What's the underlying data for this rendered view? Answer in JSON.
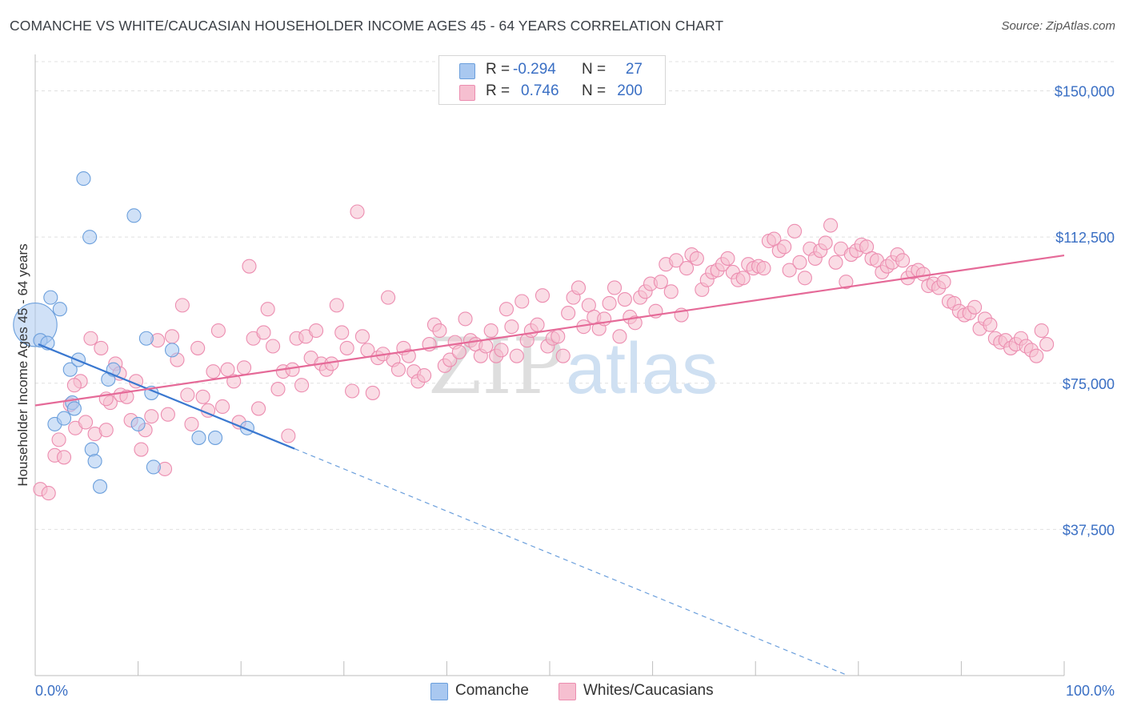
{
  "title": "COMANCHE VS WHITE/CAUCASIAN HOUSEHOLDER INCOME AGES 45 - 64 YEARS CORRELATION CHART",
  "source": "Source: ZipAtlas.com",
  "watermark": {
    "zip": "ZIP",
    "atlas": "atlas"
  },
  "legend": {
    "rows": [
      {
        "r_label": "R =",
        "r_value": "-0.294",
        "n_label": "N =",
        "n_value": "27",
        "color": "#a9c8f0",
        "stroke": "#6b9fdc"
      },
      {
        "r_label": "R =",
        "r_value": "0.746",
        "n_label": "N =",
        "n_value": "200",
        "color": "#f6bfd0",
        "stroke": "#ec8db0"
      }
    ]
  },
  "bottom_legend": [
    {
      "label": "Comanche",
      "color": "#a9c8f0",
      "stroke": "#6b9fdc"
    },
    {
      "label": "Whites/Caucasians",
      "color": "#f6bfd0",
      "stroke": "#ec8db0"
    }
  ],
  "chart_data": {
    "type": "scatter",
    "title": "COMANCHE VS WHITE/CAUCASIAN HOUSEHOLDER INCOME AGES 45 - 64 YEARS CORRELATION CHART",
    "xlabel": "",
    "ylabel": "Householder Income Ages 45 - 64 years",
    "xlim": [
      0,
      100
    ],
    "ylim": [
      0,
      157500
    ],
    "x_tick_labels": [
      "0.0%",
      "100.0%"
    ],
    "y_ticks": [
      37500,
      75000,
      112500,
      150000
    ],
    "y_tick_labels": [
      "$37,500",
      "$75,000",
      "$112,500",
      "$150,000"
    ],
    "grid": true,
    "legend_position": "top-center",
    "series": [
      {
        "name": "Comanche",
        "color": "#a9c8f0",
        "stroke": "#6b9fdc",
        "trend": {
          "x0": 0.3,
          "y0": 85000,
          "x1": 25.2,
          "y1": 58200,
          "dash_to_x": 79.0,
          "dash_to_y": 0
        },
        "points": [
          [
            0.0,
            90000,
            3.2
          ],
          [
            0.5,
            86000,
            1
          ],
          [
            1.2,
            85300,
            1
          ],
          [
            1.5,
            97000,
            1
          ],
          [
            2.4,
            94000,
            1
          ],
          [
            1.9,
            64500,
            1
          ],
          [
            2.8,
            66000,
            1
          ],
          [
            3.4,
            78500,
            1
          ],
          [
            3.6,
            70000,
            1
          ],
          [
            3.8,
            68500,
            1
          ],
          [
            4.2,
            81000,
            1
          ],
          [
            4.7,
            127500,
            1
          ],
          [
            5.3,
            112500,
            1
          ],
          [
            5.5,
            58000,
            1
          ],
          [
            5.8,
            55000,
            1
          ],
          [
            6.3,
            48500,
            1
          ],
          [
            7.1,
            76000,
            1
          ],
          [
            7.6,
            78500,
            1
          ],
          [
            9.6,
            118000,
            1
          ],
          [
            10.0,
            64500,
            1
          ],
          [
            10.8,
            86500,
            1
          ],
          [
            11.3,
            72500,
            1
          ],
          [
            11.5,
            53500,
            1
          ],
          [
            13.3,
            83500,
            1
          ],
          [
            15.9,
            61000,
            1
          ],
          [
            17.5,
            61000,
            1
          ],
          [
            20.6,
            63500,
            1
          ]
        ]
      },
      {
        "name": "Whites/Caucasians",
        "color": "#f6bfd0",
        "stroke": "#ec8db0",
        "trend": {
          "x0": 0.0,
          "y0": 69300,
          "x1": 100.0,
          "y1": 107800
        },
        "points": [
          [
            0.5,
            47800,
            1
          ],
          [
            1.3,
            46800,
            1
          ],
          [
            1.9,
            56500,
            1
          ],
          [
            2.3,
            60500,
            1
          ],
          [
            2.8,
            56000,
            1
          ],
          [
            3.4,
            69500,
            1
          ],
          [
            3.9,
            63500,
            1
          ],
          [
            4.4,
            75500,
            1
          ],
          [
            4.9,
            65000,
            1
          ],
          [
            5.4,
            86500,
            1
          ],
          [
            5.8,
            62000,
            1
          ],
          [
            6.4,
            84000,
            1
          ],
          [
            6.9,
            63000,
            1
          ],
          [
            7.3,
            70000,
            1
          ],
          [
            7.8,
            80000,
            1
          ],
          [
            8.3,
            72000,
            1
          ],
          [
            8.9,
            71500,
            1
          ],
          [
            9.3,
            65500,
            1
          ],
          [
            9.8,
            75500,
            1
          ],
          [
            10.3,
            58000,
            1
          ],
          [
            10.7,
            63000,
            1
          ],
          [
            11.3,
            66500,
            1
          ],
          [
            11.9,
            86000,
            1
          ],
          [
            12.6,
            53000,
            1
          ],
          [
            12.9,
            67000,
            1
          ],
          [
            13.3,
            87000,
            1
          ],
          [
            13.8,
            81000,
            1
          ],
          [
            14.3,
            95000,
            1
          ],
          [
            14.8,
            72000,
            1
          ],
          [
            15.2,
            64500,
            1
          ],
          [
            15.8,
            84000,
            1
          ],
          [
            16.3,
            71500,
            1
          ],
          [
            16.8,
            68000,
            1
          ],
          [
            17.3,
            78000,
            1
          ],
          [
            17.8,
            88500,
            1
          ],
          [
            18.2,
            69000,
            1
          ],
          [
            18.7,
            78500,
            1
          ],
          [
            19.3,
            75500,
            1
          ],
          [
            19.8,
            65000,
            1
          ],
          [
            20.3,
            79000,
            1
          ],
          [
            20.8,
            105000,
            1
          ],
          [
            21.2,
            86500,
            1
          ],
          [
            21.7,
            68500,
            1
          ],
          [
            22.2,
            88000,
            1
          ],
          [
            22.6,
            94000,
            1
          ],
          [
            23.1,
            84500,
            1
          ],
          [
            23.6,
            73500,
            1
          ],
          [
            24.1,
            78000,
            1
          ],
          [
            24.6,
            61500,
            1
          ],
          [
            25.0,
            78500,
            1
          ],
          [
            25.4,
            86500,
            1
          ],
          [
            25.9,
            74500,
            1
          ],
          [
            26.3,
            87000,
            1
          ],
          [
            26.8,
            81500,
            1
          ],
          [
            27.3,
            88500,
            1
          ],
          [
            27.8,
            80000,
            1
          ],
          [
            28.3,
            78500,
            1
          ],
          [
            28.8,
            80000,
            1
          ],
          [
            29.3,
            95000,
            1
          ],
          [
            29.8,
            88000,
            1
          ],
          [
            30.3,
            84000,
            1
          ],
          [
            30.8,
            73000,
            1
          ],
          [
            31.3,
            119000,
            1
          ],
          [
            31.8,
            87000,
            1
          ],
          [
            32.3,
            83500,
            1
          ],
          [
            32.8,
            72500,
            1
          ],
          [
            33.3,
            81500,
            1
          ],
          [
            33.8,
            82500,
            1
          ],
          [
            34.3,
            97000,
            1
          ],
          [
            34.8,
            81000,
            1
          ],
          [
            35.3,
            78500,
            1
          ],
          [
            35.8,
            84000,
            1
          ],
          [
            36.3,
            82000,
            1
          ],
          [
            36.8,
            78000,
            1
          ],
          [
            37.2,
            75500,
            1
          ],
          [
            37.8,
            77000,
            1
          ],
          [
            38.3,
            85000,
            1
          ],
          [
            38.8,
            90000,
            1
          ],
          [
            39.3,
            88500,
            1
          ],
          [
            39.8,
            79500,
            1
          ],
          [
            40.3,
            81000,
            1
          ],
          [
            40.8,
            85500,
            1
          ],
          [
            41.2,
            83000,
            1
          ],
          [
            41.8,
            91500,
            1
          ],
          [
            42.3,
            86000,
            1
          ],
          [
            42.8,
            85000,
            1
          ],
          [
            43.3,
            82000,
            1
          ],
          [
            43.8,
            84500,
            1
          ],
          [
            44.3,
            88500,
            1
          ],
          [
            44.8,
            82000,
            1
          ],
          [
            45.3,
            83500,
            1
          ],
          [
            45.8,
            94000,
            1
          ],
          [
            46.3,
            89500,
            1
          ],
          [
            46.8,
            82000,
            1
          ],
          [
            47.3,
            96000,
            1
          ],
          [
            47.8,
            86000,
            1
          ],
          [
            48.2,
            88500,
            1
          ],
          [
            48.8,
            90000,
            1
          ],
          [
            49.3,
            97500,
            1
          ],
          [
            49.8,
            84500,
            1
          ],
          [
            50.3,
            86500,
            1
          ],
          [
            50.8,
            87000,
            1
          ],
          [
            51.3,
            82000,
            1
          ],
          [
            51.8,
            93000,
            1
          ],
          [
            52.3,
            97000,
            1
          ],
          [
            52.8,
            99500,
            1
          ],
          [
            53.3,
            89500,
            1
          ],
          [
            53.8,
            95000,
            1
          ],
          [
            54.3,
            92000,
            1
          ],
          [
            54.8,
            89000,
            1
          ],
          [
            55.3,
            91500,
            1
          ],
          [
            55.8,
            95500,
            1
          ],
          [
            56.3,
            99500,
            1
          ],
          [
            56.8,
            87000,
            1
          ],
          [
            57.3,
            96500,
            1
          ],
          [
            57.8,
            92000,
            1
          ],
          [
            58.3,
            90500,
            1
          ],
          [
            58.8,
            97000,
            1
          ],
          [
            59.3,
            98500,
            1
          ],
          [
            59.8,
            100500,
            1
          ],
          [
            60.3,
            93500,
            1
          ],
          [
            60.8,
            101000,
            1
          ],
          [
            61.3,
            105500,
            1
          ],
          [
            61.8,
            98500,
            1
          ],
          [
            62.3,
            106500,
            1
          ],
          [
            62.8,
            92500,
            1
          ],
          [
            63.3,
            104500,
            1
          ],
          [
            63.8,
            108000,
            1
          ],
          [
            64.3,
            107000,
            1
          ],
          [
            64.8,
            99000,
            1
          ],
          [
            65.3,
            101500,
            1
          ],
          [
            65.8,
            103500,
            1
          ],
          [
            66.3,
            104000,
            1
          ],
          [
            66.8,
            105500,
            1
          ],
          [
            67.3,
            107000,
            1
          ],
          [
            67.8,
            103500,
            1
          ],
          [
            68.3,
            101500,
            1
          ],
          [
            68.8,
            102000,
            1
          ],
          [
            69.3,
            105500,
            1
          ],
          [
            69.8,
            104500,
            1
          ],
          [
            70.3,
            105000,
            1
          ],
          [
            70.8,
            104500,
            1
          ],
          [
            71.3,
            111500,
            1
          ],
          [
            71.8,
            112000,
            1
          ],
          [
            72.3,
            109000,
            1
          ],
          [
            72.8,
            110000,
            1
          ],
          [
            73.3,
            104000,
            1
          ],
          [
            73.8,
            114000,
            1
          ],
          [
            74.3,
            106000,
            1
          ],
          [
            74.8,
            102000,
            1
          ],
          [
            75.3,
            109500,
            1
          ],
          [
            75.8,
            107000,
            1
          ],
          [
            76.3,
            109000,
            1
          ],
          [
            76.8,
            111000,
            1
          ],
          [
            77.3,
            115500,
            1
          ],
          [
            77.8,
            106000,
            1
          ],
          [
            78.3,
            109500,
            1
          ],
          [
            78.8,
            101000,
            1
          ],
          [
            79.3,
            108000,
            1
          ],
          [
            79.8,
            109000,
            1
          ],
          [
            80.3,
            110500,
            1
          ],
          [
            80.8,
            110000,
            1
          ],
          [
            81.3,
            107000,
            1
          ],
          [
            81.8,
            106500,
            1
          ],
          [
            82.3,
            103500,
            1
          ],
          [
            82.8,
            105000,
            1
          ],
          [
            83.3,
            106000,
            1
          ],
          [
            83.8,
            108000,
            1
          ],
          [
            84.3,
            106500,
            1
          ],
          [
            84.8,
            102000,
            1
          ],
          [
            85.3,
            103500,
            1
          ],
          [
            85.8,
            104000,
            1
          ],
          [
            86.3,
            103000,
            1
          ],
          [
            86.8,
            100000,
            1
          ],
          [
            87.3,
            100500,
            1
          ],
          [
            87.8,
            99500,
            1
          ],
          [
            88.3,
            101000,
            1
          ],
          [
            88.8,
            96000,
            1
          ],
          [
            89.3,
            95500,
            1
          ],
          [
            89.8,
            93500,
            1
          ],
          [
            90.3,
            92500,
            1
          ],
          [
            90.8,
            93000,
            1
          ],
          [
            91.3,
            94500,
            1
          ],
          [
            91.8,
            89000,
            1
          ],
          [
            92.3,
            91500,
            1
          ],
          [
            92.8,
            90000,
            1
          ],
          [
            93.3,
            86500,
            1
          ],
          [
            93.8,
            85500,
            1
          ],
          [
            94.3,
            86000,
            1
          ],
          [
            94.8,
            84000,
            1
          ],
          [
            95.3,
            85000,
            1
          ],
          [
            95.8,
            86500,
            1
          ],
          [
            96.3,
            84500,
            1
          ],
          [
            96.8,
            83500,
            1
          ],
          [
            97.3,
            82000,
            1
          ],
          [
            97.8,
            88500,
            1
          ],
          [
            98.3,
            85000,
            1
          ],
          [
            3.8,
            74500,
            1
          ],
          [
            6.9,
            71000,
            1
          ],
          [
            8.2,
            77500,
            1
          ]
        ]
      }
    ]
  }
}
